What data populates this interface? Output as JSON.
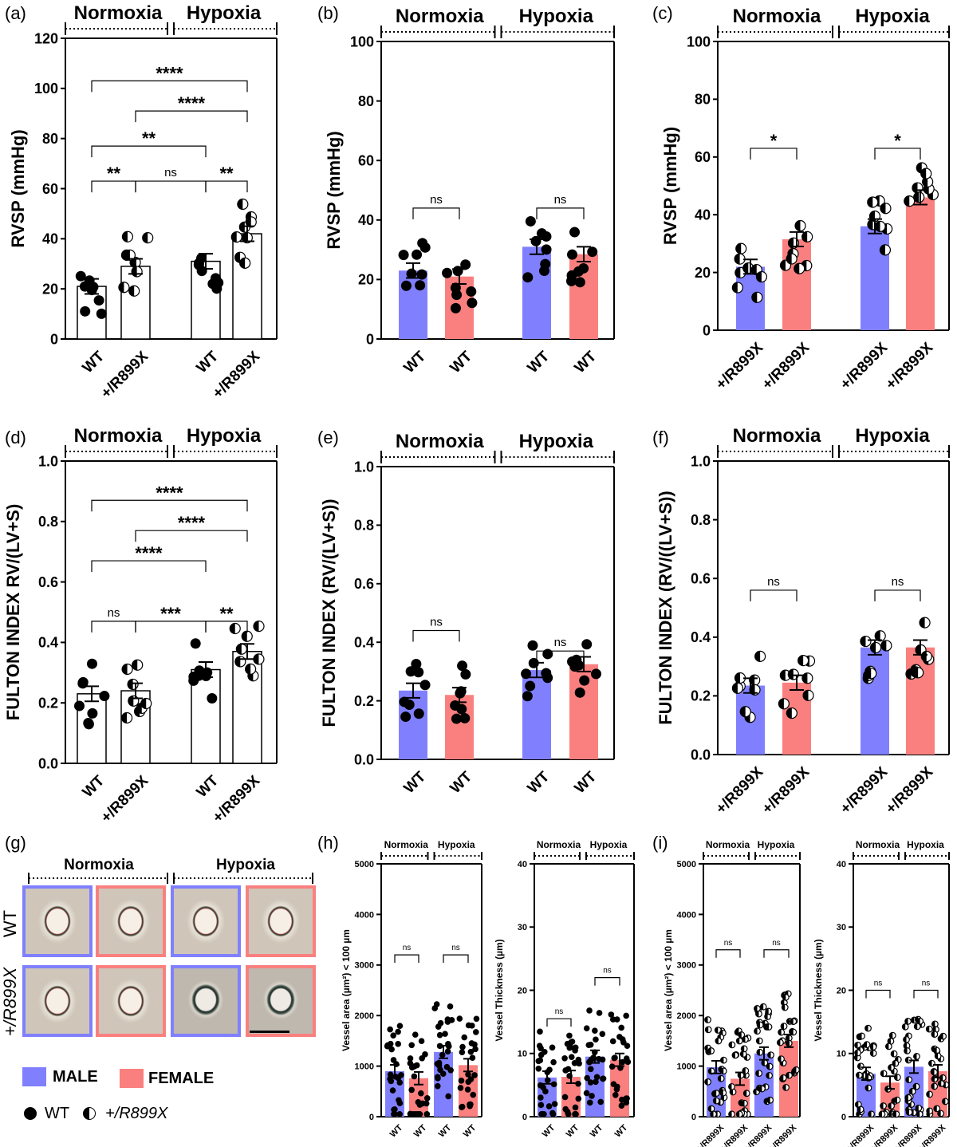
{
  "colors": {
    "male": "#8080ff",
    "female": "#fa8080",
    "white": "#ffffff",
    "black": "#000000"
  },
  "groups": {
    "normoxia": "Normoxia",
    "hypoxia": "Hypoxia"
  },
  "panel_labels": [
    "(a)",
    "(b)",
    "(c)",
    "(d)",
    "(e)",
    "(f)",
    "(g)",
    "(h)",
    "(i)"
  ],
  "legend": {
    "male": "MALE",
    "female": "FEMALE",
    "wt": "WT",
    "mut": "+/R899X"
  },
  "micrograph": {
    "row_labels": [
      "WT",
      "+/R899X"
    ]
  },
  "chart_data": [
    {
      "id": "a",
      "type": "bar",
      "ylabel": "RVSP (mmHg)",
      "ylim": [
        0,
        120
      ],
      "yticks": [
        0,
        20,
        40,
        60,
        80,
        100,
        120
      ],
      "categories": [
        "WT",
        "+/R899X",
        "WT",
        "+/R899X"
      ],
      "values": [
        21,
        29,
        31,
        42
      ],
      "bar_fills": [
        "white",
        "white",
        "white",
        "white"
      ],
      "markers": [
        "wt",
        "mut",
        "wt",
        "mut"
      ],
      "comparisons": [
        {
          "from": 0,
          "to": 1,
          "label": "**",
          "y": 63
        },
        {
          "from": 1,
          "to": 2,
          "label": "ns",
          "y": 63
        },
        {
          "from": 2,
          "to": 3,
          "label": "**",
          "y": 63
        },
        {
          "from": 0,
          "to": 2,
          "label": "**",
          "y": 77
        },
        {
          "from": 1,
          "to": 3,
          "label": "****",
          "y": 91
        },
        {
          "from": 0,
          "to": 3,
          "label": "****",
          "y": 103
        }
      ]
    },
    {
      "id": "b",
      "type": "bar",
      "ylabel": "RVSP (mmHg)",
      "ylim": [
        0,
        100
      ],
      "yticks": [
        0,
        20,
        40,
        60,
        80,
        100
      ],
      "categories": [
        "WT",
        "WT",
        "WT",
        "WT"
      ],
      "values": [
        23,
        21,
        31,
        28.5
      ],
      "bar_fills": [
        "male",
        "female",
        "male",
        "female"
      ],
      "markers": [
        "wt",
        "wt",
        "wt",
        "wt"
      ],
      "comparisons": [
        {
          "from": 0,
          "to": 1,
          "label": "ns",
          "y": 44
        },
        {
          "from": 2,
          "to": 3,
          "label": "ns",
          "y": 44
        }
      ]
    },
    {
      "id": "c",
      "type": "bar",
      "ylabel": "RVSP (mmHg)",
      "ylim": [
        0,
        100
      ],
      "yticks": [
        0,
        20,
        40,
        60,
        80,
        100
      ],
      "categories": [
        "+/R899X",
        "+/R899X",
        "+/R899X",
        "+/R899X"
      ],
      "values": [
        22,
        31.5,
        36,
        46
      ],
      "bar_fills": [
        "male",
        "female",
        "male",
        "female"
      ],
      "markers": [
        "mut",
        "mut",
        "mut",
        "mut"
      ],
      "comparisons": [
        {
          "from": 0,
          "to": 1,
          "label": "*",
          "y": 63
        },
        {
          "from": 2,
          "to": 3,
          "label": "*",
          "y": 63
        }
      ]
    },
    {
      "id": "d",
      "type": "bar",
      "ylabel": "FULTON INDEX RV/(LV+S)",
      "ylim": [
        0,
        1
      ],
      "yticks": [
        0,
        0.2,
        0.4,
        0.6,
        0.8,
        1.0
      ],
      "categories": [
        "WT",
        "+/R899X",
        "WT",
        "+/R899X"
      ],
      "values": [
        0.23,
        0.24,
        0.31,
        0.37
      ],
      "bar_fills": [
        "white",
        "white",
        "white",
        "white"
      ],
      "markers": [
        "wt",
        "mut",
        "wt",
        "mut"
      ],
      "comparisons": [
        {
          "from": 0,
          "to": 1,
          "label": "ns",
          "y": 0.47
        },
        {
          "from": 1,
          "to": 2,
          "label": "***",
          "y": 0.47
        },
        {
          "from": 2,
          "to": 3,
          "label": "**",
          "y": 0.47
        },
        {
          "from": 0,
          "to": 2,
          "label": "****",
          "y": 0.67
        },
        {
          "from": 1,
          "to": 3,
          "label": "****",
          "y": 0.77
        },
        {
          "from": 0,
          "to": 3,
          "label": "****",
          "y": 0.87
        }
      ]
    },
    {
      "id": "e",
      "type": "bar",
      "ylabel": "FULTON INDEX (RV/(LV+S))",
      "ylim": [
        0,
        1
      ],
      "yticks": [
        0,
        0.2,
        0.4,
        0.6,
        0.8,
        1.0
      ],
      "categories": [
        "WT",
        "WT",
        "WT",
        "WT"
      ],
      "values": [
        0.235,
        0.22,
        0.305,
        0.325
      ],
      "bar_fills": [
        "male",
        "female",
        "male",
        "female"
      ],
      "markers": [
        "wt",
        "wt",
        "wt",
        "wt"
      ],
      "comparisons": [
        {
          "from": 0,
          "to": 1,
          "label": "ns",
          "y": 0.44
        },
        {
          "from": 2,
          "to": 3,
          "label": "ns",
          "y": 0.37
        }
      ]
    },
    {
      "id": "f",
      "type": "bar",
      "ylabel": "FULTON INDEX (RV/((LV+S))",
      "ylim": [
        0,
        1
      ],
      "yticks": [
        0,
        0.2,
        0.4,
        0.6,
        0.8,
        1.0
      ],
      "categories": [
        "+/R899X",
        "+/R899X",
        "+/R899X",
        "+/R899X"
      ],
      "values": [
        0.235,
        0.245,
        0.365,
        0.365
      ],
      "bar_fills": [
        "male",
        "female",
        "male",
        "female"
      ],
      "markers": [
        "mut",
        "mut",
        "mut",
        "mut"
      ],
      "comparisons": [
        {
          "from": 0,
          "to": 1,
          "label": "ns",
          "y": 0.56
        },
        {
          "from": 2,
          "to": 3,
          "label": "ns",
          "y": 0.56
        }
      ]
    },
    {
      "id": "h1",
      "type": "bar",
      "ylabel": "Vessel area (µm²) < 100 µm",
      "ylim": [
        0,
        5000
      ],
      "yticks": [
        0,
        1000,
        2000,
        3000,
        4000,
        5000
      ],
      "categories": [
        "WT",
        "WT",
        "WT",
        "WT"
      ],
      "values": [
        900,
        760,
        1280,
        1020
      ],
      "bar_fills": [
        "male",
        "female",
        "male",
        "female"
      ],
      "markers": [
        "wt",
        "wt",
        "wt",
        "wt"
      ],
      "comparisons": [
        {
          "from": 0,
          "to": 1,
          "label": "ns",
          "y": 3200
        },
        {
          "from": 2,
          "to": 3,
          "label": "ns",
          "y": 3200
        }
      ]
    },
    {
      "id": "h2",
      "type": "bar",
      "ylabel": "Vessel Thickness (µm)",
      "ylim": [
        0,
        40
      ],
      "yticks": [
        0,
        10,
        20,
        30,
        40
      ],
      "categories": [
        "WT",
        "WT",
        "WT",
        "WT"
      ],
      "values": [
        6.2,
        6.3,
        9.5,
        9.0
      ],
      "bar_fills": [
        "male",
        "female",
        "male",
        "female"
      ],
      "markers": [
        "wt",
        "wt",
        "wt",
        "wt"
      ],
      "comparisons": [
        {
          "from": 0,
          "to": 1,
          "label": "ns",
          "y": 15.5
        },
        {
          "from": 2,
          "to": 3,
          "label": "ns",
          "y": 22
        }
      ]
    },
    {
      "id": "i1",
      "type": "bar",
      "ylabel": "Vessel area (µm²) < 100 µm",
      "ylim": [
        0,
        5000
      ],
      "yticks": [
        0,
        1000,
        2000,
        3000,
        4000,
        5000
      ],
      "categories": [
        "+/R899X",
        "+/R899X",
        "+/R899X",
        "+/R899X"
      ],
      "values": [
        980,
        750,
        1250,
        1500
      ],
      "bar_fills": [
        "male",
        "female",
        "male",
        "female"
      ],
      "markers": [
        "mut",
        "mut",
        "mut",
        "mut"
      ],
      "comparisons": [
        {
          "from": 0,
          "to": 1,
          "label": "ns",
          "y": 3300
        },
        {
          "from": 2,
          "to": 3,
          "label": "ns",
          "y": 3300
        }
      ]
    },
    {
      "id": "i2",
      "type": "bar",
      "ylabel": "Vessel Thickness (µm)",
      "ylim": [
        0,
        40
      ],
      "yticks": [
        0,
        10,
        20,
        30,
        40
      ],
      "categories": [
        "+/R899X",
        "+/R899X",
        "+/R899X",
        "+/R899X"
      ],
      "values": [
        6.8,
        5.4,
        7.9,
        7.2
      ],
      "bar_fills": [
        "male",
        "female",
        "male",
        "female"
      ],
      "markers": [
        "mut",
        "mut",
        "mut",
        "mut"
      ],
      "comparisons": [
        {
          "from": 0,
          "to": 1,
          "label": "ns",
          "y": 20
        },
        {
          "from": 2,
          "to": 3,
          "label": "ns",
          "y": 20
        }
      ]
    }
  ]
}
